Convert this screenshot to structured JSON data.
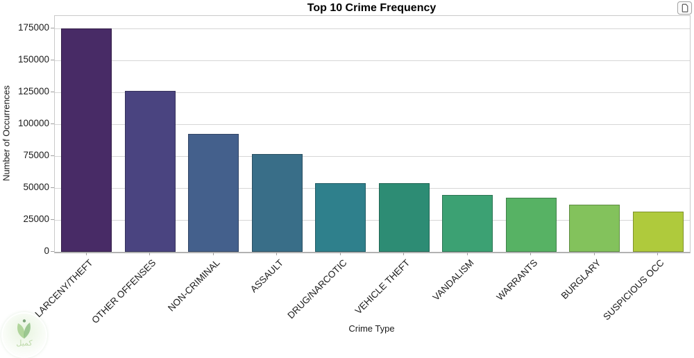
{
  "figure": {
    "title": "Top 10 Crime Frequency"
  },
  "chart_data": {
    "type": "bar",
    "title": "Top 10 Crime Frequency",
    "xlabel": "Crime Type",
    "ylabel": "Number of Occurrences",
    "categories": [
      "LARCENY/THEFT",
      "OTHER OFFENSES",
      "NON-CRIMINAL",
      "ASSAULT",
      "DRUG/NARCOTIC",
      "VEHICLE THEFT",
      "VANDALISM",
      "WARRANTS",
      "BURGLARY",
      "SUSPICIOUS OCC"
    ],
    "values": [
      174900,
      126182,
      92304,
      76876,
      53971,
      53781,
      44725,
      42214,
      36755,
      31414
    ],
    "bar_colors": [
      "#482b66",
      "#4a4480",
      "#44608c",
      "#396e88",
      "#2f808c",
      "#2d8c74",
      "#3ca173",
      "#57b264",
      "#83c25c",
      "#afca3c"
    ],
    "yticks": [
      0,
      25000,
      50000,
      75000,
      100000,
      125000,
      150000,
      175000
    ],
    "ylim": [
      0,
      184800
    ],
    "grid": "horizontal",
    "legend": "none",
    "tick_label_rotation": 45
  },
  "watermark": {
    "text": "كميل"
  }
}
